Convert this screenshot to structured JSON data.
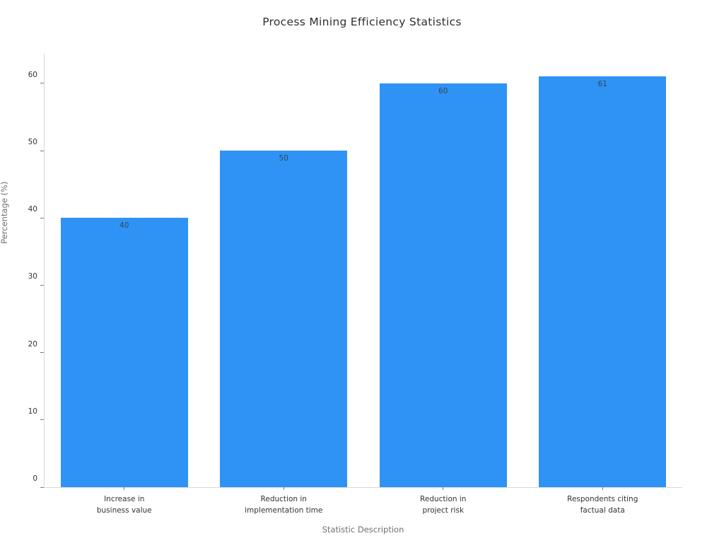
{
  "chart_data": {
    "type": "bar",
    "title": "Process Mining Efficiency Statistics",
    "xlabel": "Statistic Description",
    "ylabel": "Percentage (%)",
    "categories": [
      "Increase in\nbusiness value",
      "Reduction in\nimplementation time",
      "Reduction in\nproject risk",
      "Respondents citing\nfactual data"
    ],
    "values": [
      40,
      50,
      60,
      61
    ],
    "value_labels": [
      "40",
      "50",
      "60",
      "61"
    ],
    "yticks": [
      0,
      10,
      20,
      30,
      40,
      50,
      60
    ],
    "ytick_labels": [
      "0",
      "10",
      "20",
      "30",
      "40",
      "50",
      "60"
    ],
    "ylim": [
      0,
      64.5
    ],
    "grid": false,
    "legend": "none",
    "background_color": "#ffffff",
    "bar_color": "#2f92f5",
    "value_label_color": "#37474f",
    "axis_line_color": "#d9d9d9",
    "tick_color": "#7a7a7a",
    "text_color": "#333333",
    "axis_title_color": "#707070",
    "title_color": "#2f2f2f"
  }
}
